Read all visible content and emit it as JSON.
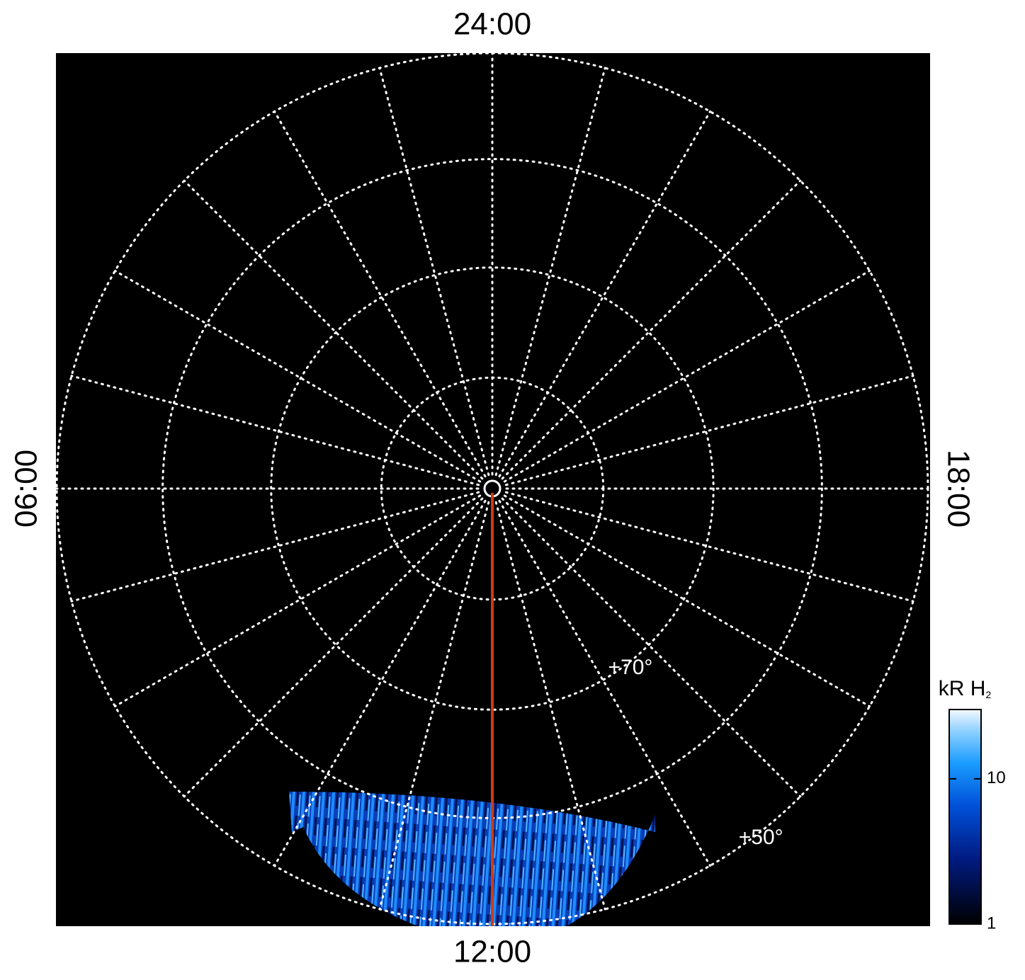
{
  "chart_data": {
    "type": "polar",
    "local_times": [
      {
        "value": 0,
        "label": "24:00"
      },
      {
        "value": 6,
        "label": "06:00"
      },
      {
        "value": 12,
        "label": "12:00"
      },
      {
        "value": 18,
        "label": "18:00"
      }
    ],
    "latitude_circles": [
      80,
      70,
      60,
      50
    ],
    "latitude_labels": [
      {
        "value": 70,
        "label": "+70°"
      },
      {
        "value": 50,
        "label": "+50°"
      }
    ],
    "colorbar": {
      "label": "kR H",
      "label_sub": "2",
      "scale": "log",
      "lim": [
        1,
        30
      ],
      "ticks": [
        1,
        10
      ]
    }
  }
}
